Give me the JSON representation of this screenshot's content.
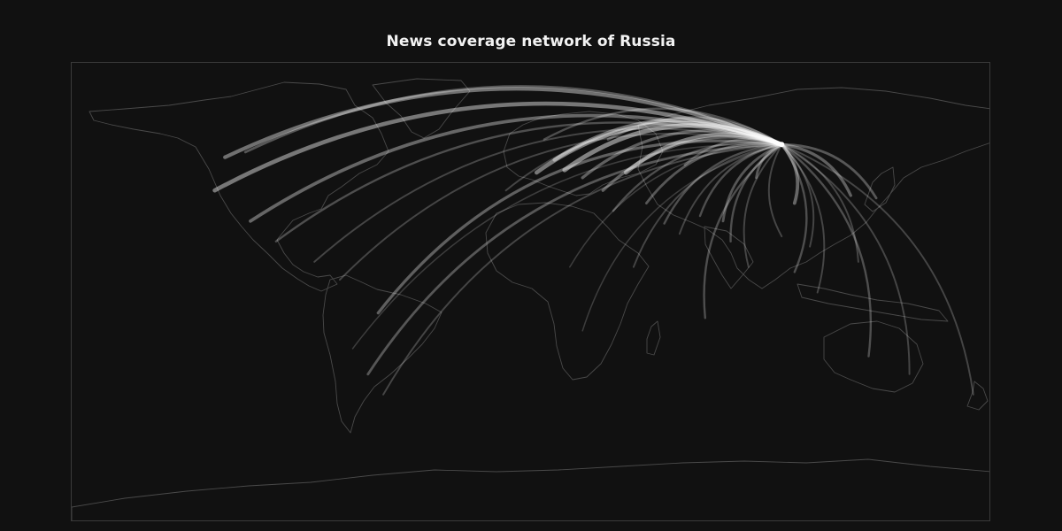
{
  "title": "News coverage network of Russia",
  "map": {
    "projection": "equirectangular",
    "background_color": "#111111",
    "land_outline_color": "#4a4a4a",
    "arc_color": "#ffffff",
    "hub": {
      "name": "Russia",
      "lon": 98,
      "lat": 58
    }
  },
  "connections": [
    {
      "lon": -124,
      "lat": 40,
      "weight": 0.9
    },
    {
      "lon": -120,
      "lat": 53,
      "weight": 0.8
    },
    {
      "lon": -110,
      "lat": 28,
      "weight": 0.7
    },
    {
      "lon": -112,
      "lat": 55,
      "weight": 0.5
    },
    {
      "lon": -100,
      "lat": 20,
      "weight": 0.4
    },
    {
      "lon": -85,
      "lat": 12,
      "weight": 0.3
    },
    {
      "lon": -75,
      "lat": 5,
      "weight": 0.3
    },
    {
      "lon": -60,
      "lat": -8,
      "weight": 0.6
    },
    {
      "lon": -64,
      "lat": -32,
      "weight": 0.5
    },
    {
      "lon": -58,
      "lat": -40,
      "weight": 0.3
    },
    {
      "lon": -70,
      "lat": -22,
      "weight": 0.2
    },
    {
      "lon": 2,
      "lat": 47,
      "weight": 0.9
    },
    {
      "lon": 9,
      "lat": 52,
      "weight": 0.8
    },
    {
      "lon": 13,
      "lat": 48,
      "weight": 1.0
    },
    {
      "lon": 20,
      "lat": 45,
      "weight": 0.6
    },
    {
      "lon": 28,
      "lat": 40,
      "weight": 0.6
    },
    {
      "lon": 37,
      "lat": 47,
      "weight": 0.9
    },
    {
      "lon": 32,
      "lat": 32,
      "weight": 0.4
    },
    {
      "lon": 45,
      "lat": 35,
      "weight": 0.5
    },
    {
      "lon": 52,
      "lat": 27,
      "weight": 0.4
    },
    {
      "lon": 58,
      "lat": 23,
      "weight": 0.3
    },
    {
      "lon": 66,
      "lat": 30,
      "weight": 0.4
    },
    {
      "lon": 75,
      "lat": 28,
      "weight": 0.5
    },
    {
      "lon": 78,
      "lat": 20,
      "weight": 0.4
    },
    {
      "lon": 98,
      "lat": 22,
      "weight": 0.3
    },
    {
      "lon": 103,
      "lat": 35,
      "weight": 0.7
    },
    {
      "lon": 103,
      "lat": 8,
      "weight": 0.4
    },
    {
      "lon": 109,
      "lat": 18,
      "weight": 0.3
    },
    {
      "lon": 112,
      "lat": 0,
      "weight": 0.3
    },
    {
      "lon": 125,
      "lat": 38,
      "weight": 0.6
    },
    {
      "lon": 135,
      "lat": 37,
      "weight": 0.5
    },
    {
      "lon": 128,
      "lat": 12,
      "weight": 0.3
    },
    {
      "lon": 132,
      "lat": -25,
      "weight": 0.4
    },
    {
      "lon": 148,
      "lat": -32,
      "weight": 0.3
    },
    {
      "lon": 173,
      "lat": -40,
      "weight": 0.3
    },
    {
      "lon": 68,
      "lat": -10,
      "weight": 0.4
    },
    {
      "lon": 20,
      "lat": -15,
      "weight": 0.2
    },
    {
      "lon": 15,
      "lat": 10,
      "weight": 0.2
    },
    {
      "lon": 40,
      "lat": 10,
      "weight": 0.3
    },
    {
      "lon": 5,
      "lat": 60,
      "weight": 0.4
    },
    {
      "lon": -10,
      "lat": 40,
      "weight": 0.3
    },
    {
      "lon": 30,
      "lat": 60,
      "weight": 0.5
    },
    {
      "lon": 85,
      "lat": 10,
      "weight": 0.3
    },
    {
      "lon": 60,
      "lat": 50,
      "weight": 0.4
    },
    {
      "lon": 88,
      "lat": 45,
      "weight": 0.5
    }
  ]
}
